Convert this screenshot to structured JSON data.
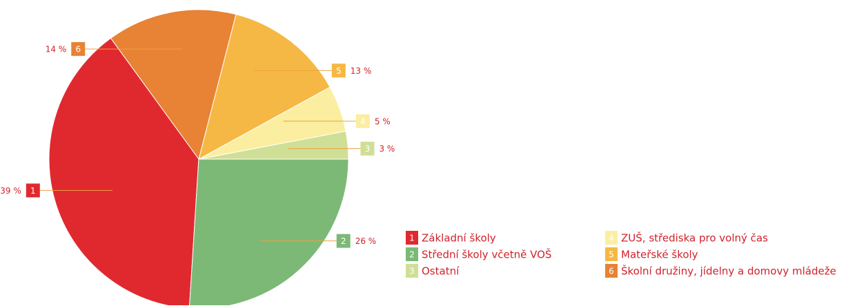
{
  "chart_data": {
    "type": "pie",
    "numbers": [
      "1",
      "2",
      "3",
      "4",
      "5",
      "6"
    ],
    "categories": [
      "Základní školy",
      "Střední školy včetně VOŠ",
      "Ostatní",
      "ZUŠ, střediska pro volný čas",
      "Mateřské školy",
      "Školní družiny, jídelny a domovy mládeže"
    ],
    "values": [
      39,
      26,
      3,
      5,
      13,
      14
    ],
    "value_labels": [
      "39 %",
      "26 %",
      "3 %",
      "5 %",
      "13 %",
      "14 %"
    ],
    "colors": [
      "#e0292f",
      "#7cb977",
      "#cfdf95",
      "#fbeea0",
      "#f6b844",
      "#e88234"
    ]
  }
}
